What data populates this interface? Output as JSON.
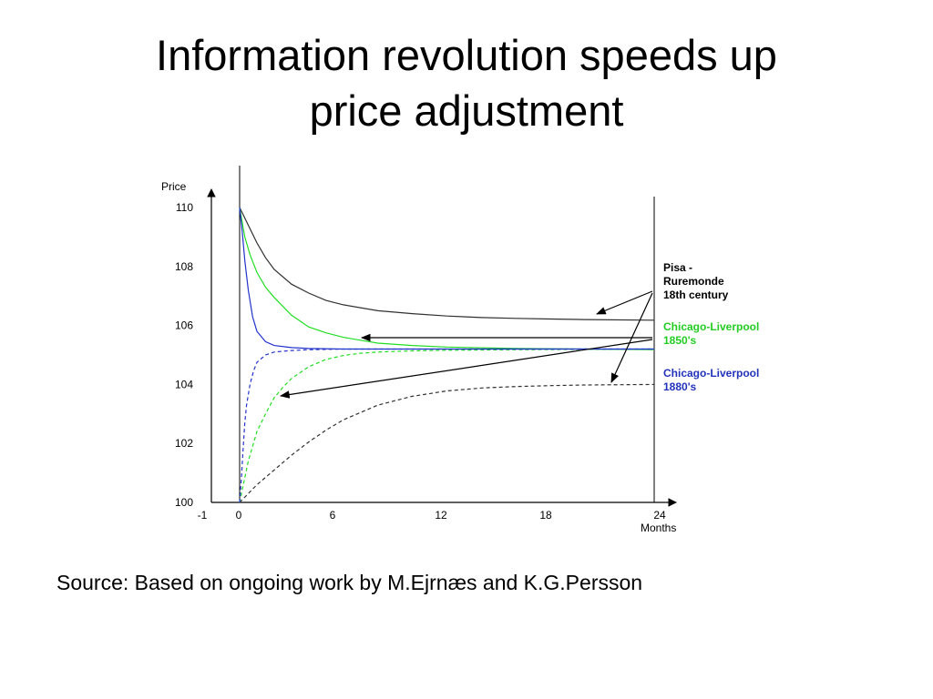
{
  "slide": {
    "title_line1": "Information revolution speeds up",
    "title_line2": "price adjustment",
    "source": "Source: Based on ongoing work by M.Ejrnæs and K.G.Persson"
  },
  "chart_data": {
    "type": "line",
    "xlabel": "Months",
    "ylabel": "Price",
    "xlim": [
      -1,
      24
    ],
    "ylim": [
      100,
      110
    ],
    "xticks": [
      -1,
      0,
      6,
      12,
      18,
      24
    ],
    "yticks": [
      100,
      102,
      104,
      106,
      108,
      110
    ],
    "grid": false,
    "legend_placement": "right",
    "series": [
      {
        "key": "pisa",
        "color": "#303030",
        "label_lines": [
          "Pisa -",
          "Ruremonde",
          " 18th century"
        ],
        "label_color": "#000000",
        "upper": {
          "x": [
            0,
            0.5,
            1,
            1.5,
            2,
            3,
            4,
            5,
            6,
            8,
            10,
            12,
            14,
            16,
            18,
            20,
            24
          ],
          "y": [
            110,
            109.4,
            108.8,
            108.3,
            107.9,
            107.4,
            107.1,
            106.85,
            106.7,
            106.5,
            106.4,
            106.32,
            106.27,
            106.24,
            106.22,
            106.2,
            106.18
          ]
        },
        "lower": {
          "x": [
            0,
            1,
            2,
            3,
            4,
            5,
            6,
            7,
            8,
            9,
            10,
            12,
            14,
            16,
            18,
            20,
            24
          ],
          "y": [
            100,
            100.6,
            101.1,
            101.6,
            102.05,
            102.45,
            102.8,
            103.05,
            103.3,
            103.45,
            103.6,
            103.78,
            103.88,
            103.93,
            103.96,
            103.98,
            104.0
          ]
        }
      },
      {
        "key": "cl1850",
        "color": "#22dd22",
        "label_lines": [
          "Chicago-Liverpool",
          "1850's"
        ],
        "label_color": "#22cc22",
        "upper": {
          "x": [
            0,
            0.3,
            0.6,
            1,
            1.5,
            2,
            3,
            4,
            5,
            6,
            7,
            8,
            10,
            12,
            16,
            20,
            24
          ],
          "y": [
            110,
            109,
            108.4,
            107.8,
            107.3,
            106.95,
            106.35,
            105.95,
            105.75,
            105.6,
            105.5,
            105.4,
            105.32,
            105.27,
            105.22,
            105.2,
            105.18
          ]
        },
        "lower": {
          "x": [
            0,
            0.5,
            1,
            1.5,
            2,
            2.5,
            3,
            4,
            5,
            6,
            7,
            8,
            10,
            12,
            16,
            20,
            24
          ],
          "y": [
            100,
            101.4,
            102.4,
            103.0,
            103.55,
            103.9,
            104.2,
            104.6,
            104.85,
            104.98,
            105.06,
            105.1,
            105.14,
            105.16,
            105.18,
            105.19,
            105.2
          ]
        }
      },
      {
        "key": "cl1880",
        "color": "#2233cc",
        "label_lines": [
          "Chicago-Liverpool",
          "1880's"
        ],
        "label_color": "#2233bb",
        "upper": {
          "x": [
            0,
            0.15,
            0.3,
            0.5,
            0.75,
            1,
            1.5,
            2,
            3,
            4,
            6,
            12,
            18,
            24
          ],
          "y": [
            110,
            109.2,
            108.2,
            107.2,
            106.3,
            105.8,
            105.45,
            105.32,
            105.25,
            105.22,
            105.2,
            105.2,
            105.2,
            105.2
          ]
        },
        "lower": {
          "x": [
            0,
            0.1,
            0.2,
            0.3,
            0.4,
            0.6,
            0.8,
            1,
            1.5,
            2,
            3,
            4,
            6,
            12,
            18,
            24
          ],
          "y": [
            100,
            100.8,
            101.8,
            102.7,
            103.3,
            104.0,
            104.45,
            104.75,
            105.0,
            105.1,
            105.15,
            105.18,
            105.2,
            105.2,
            105.2,
            105.2
          ]
        }
      }
    ]
  }
}
